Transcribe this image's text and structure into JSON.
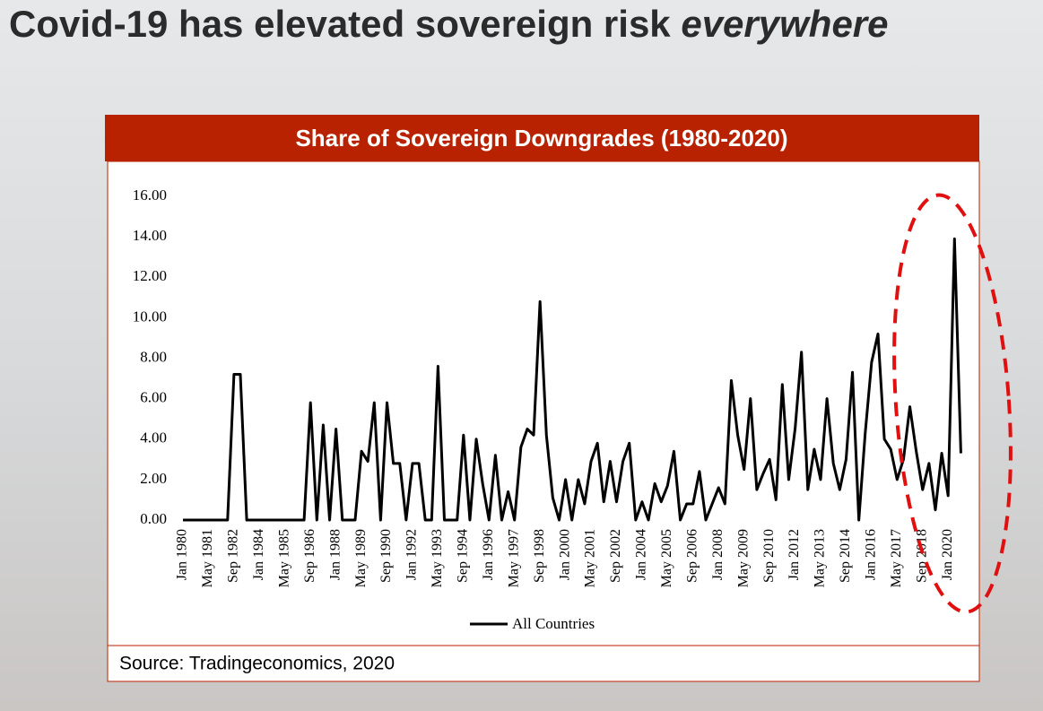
{
  "title": "Covid-19 has elevated sovereign risk",
  "title_emphasis": "everywhere",
  "source": "Source: Tradingeconomics, 2020",
  "chart_data": {
    "type": "line",
    "title": "Share of Sovereign Downgrades (1980-2020)",
    "categories": [
      "Jan 1980",
      null,
      null,
      null,
      "May 1981",
      null,
      null,
      null,
      "Sep 1982",
      null,
      null,
      null,
      "Jan 1984",
      null,
      null,
      null,
      "May 1985",
      null,
      null,
      null,
      "Sep 1986",
      null,
      null,
      null,
      "Jan 1988",
      null,
      null,
      null,
      "May 1989",
      null,
      null,
      null,
      "Sep 1990",
      null,
      null,
      null,
      "Jan 1992",
      null,
      null,
      null,
      "May 1993",
      null,
      null,
      null,
      "Sep 1994",
      null,
      null,
      null,
      "Jan 1996",
      null,
      null,
      null,
      "May 1997",
      null,
      null,
      null,
      "Sep 1998",
      null,
      null,
      null,
      "Jan 2000",
      null,
      null,
      null,
      "May 2001",
      null,
      null,
      null,
      "Sep 2002",
      null,
      null,
      null,
      "Jan 2004",
      null,
      null,
      null,
      "May 2005",
      null,
      null,
      null,
      "Sep 2006",
      null,
      null,
      null,
      "Jan 2008",
      null,
      null,
      null,
      "May 2009",
      null,
      null,
      null,
      "Sep 2010",
      null,
      null,
      null,
      "Jan 2012",
      null,
      null,
      null,
      "May 2013",
      null,
      null,
      null,
      "Sep 2014",
      null,
      null,
      null,
      "Jan 2016",
      null,
      null,
      null,
      "May 2017",
      null,
      null,
      null,
      "Sep 2018",
      null,
      null,
      null,
      "Jan 2020",
      null,
      null
    ],
    "series": [
      {
        "name": "All Countries",
        "color": "#000000",
        "values": [
          0,
          0,
          0,
          0,
          0,
          0,
          0,
          0,
          7.2,
          7.2,
          0,
          0,
          0,
          0,
          0,
          0,
          0,
          0,
          0,
          0,
          5.8,
          0,
          4.7,
          0,
          4.5,
          0,
          0,
          0,
          3.4,
          2.9,
          5.8,
          0,
          5.8,
          2.8,
          2.8,
          0,
          2.8,
          2.8,
          0,
          0,
          7.6,
          0,
          0,
          0,
          4.2,
          0,
          4.0,
          1.8,
          0,
          3.2,
          0,
          1.4,
          0,
          3.6,
          4.5,
          4.2,
          10.8,
          4.2,
          1.1,
          0,
          2.0,
          0,
          2.0,
          0.8,
          2.9,
          3.8,
          0.9,
          2.9,
          0.9,
          2.9,
          3.8,
          0,
          0.9,
          0,
          1.8,
          0.9,
          1.7,
          3.4,
          0,
          0.8,
          0.8,
          2.4,
          0,
          0.8,
          1.6,
          0.8,
          6.9,
          4.2,
          2.5,
          6.0,
          1.5,
          2.3,
          3.0,
          1.0,
          6.7,
          2.0,
          4.5,
          8.3,
          1.5,
          3.5,
          2.0,
          6.0,
          2.8,
          1.5,
          3.0,
          7.3,
          0,
          4.3,
          7.8,
          9.2,
          4.0,
          3.5,
          2.0,
          3.0,
          5.6,
          3.4,
          1.5,
          2.8,
          0.5,
          3.3,
          1.2,
          13.9,
          3.3
        ]
      }
    ],
    "ylim": [
      0,
      16
    ],
    "yticks": [
      {
        "value": 0,
        "label": "0.00"
      },
      {
        "value": 2,
        "label": "2.00"
      },
      {
        "value": 4,
        "label": "4.00"
      },
      {
        "value": 6,
        "label": "6.00"
      },
      {
        "value": 8,
        "label": "8.00"
      },
      {
        "value": 10,
        "label": "10.00"
      },
      {
        "value": 12,
        "label": "12.00"
      },
      {
        "value": 14,
        "label": "14.00"
      },
      {
        "value": 16,
        "label": "16.00"
      }
    ],
    "grid": false,
    "legend": "bottom"
  }
}
